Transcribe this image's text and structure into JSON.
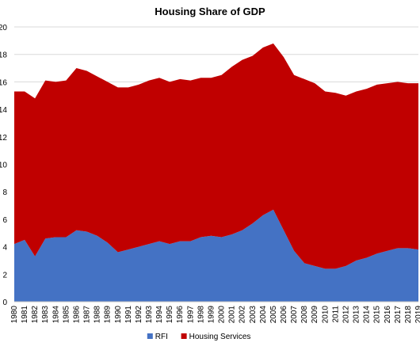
{
  "chart_data": {
    "type": "area",
    "stacked": true,
    "title": "Housing Share of GDP",
    "xlabel": "",
    "ylabel": "",
    "ylim": [
      0,
      20
    ],
    "yticks": [
      "0",
      "2",
      "4",
      "6",
      "8",
      "10",
      "12",
      "14",
      "16",
      "18",
      "20"
    ],
    "grid": true,
    "legend_position": "bottom",
    "x": [
      1980,
      1981,
      1982,
      1983,
      1984,
      1985,
      1986,
      1987,
      1988,
      1989,
      1990,
      1991,
      1992,
      1993,
      1994,
      1995,
      1996,
      1997,
      1998,
      1999,
      2000,
      2001,
      2002,
      2003,
      2004,
      2005,
      2006,
      2007,
      2008,
      2009,
      2010,
      2011,
      2012,
      2013,
      2014,
      2015,
      2016,
      2017,
      2018,
      2019
    ],
    "series": [
      {
        "name": "RFI",
        "color": "#4472c4",
        "values": [
          4.2,
          4.5,
          3.3,
          4.6,
          4.7,
          4.7,
          5.2,
          5.1,
          4.8,
          4.3,
          3.6,
          3.8,
          4.0,
          4.2,
          4.4,
          4.2,
          4.4,
          4.4,
          4.7,
          4.8,
          4.7,
          4.9,
          5.2,
          5.7,
          6.3,
          6.7,
          5.2,
          3.7,
          2.8,
          2.6,
          2.4,
          2.4,
          2.6,
          3.0,
          3.2,
          3.5,
          3.7,
          3.9,
          3.9,
          3.8
        ]
      },
      {
        "name": "Housing Services",
        "color": "#c00000",
        "values": [
          11.1,
          10.8,
          11.5,
          11.5,
          11.3,
          11.4,
          11.8,
          11.7,
          11.6,
          11.7,
          12.0,
          11.8,
          11.8,
          11.9,
          11.9,
          11.8,
          11.8,
          11.7,
          11.6,
          11.5,
          11.8,
          12.2,
          12.4,
          12.2,
          12.2,
          12.1,
          12.6,
          12.8,
          13.4,
          13.3,
          12.9,
          12.8,
          12.4,
          12.3,
          12.3,
          12.3,
          12.2,
          12.1,
          12.0,
          12.1
        ]
      }
    ]
  }
}
